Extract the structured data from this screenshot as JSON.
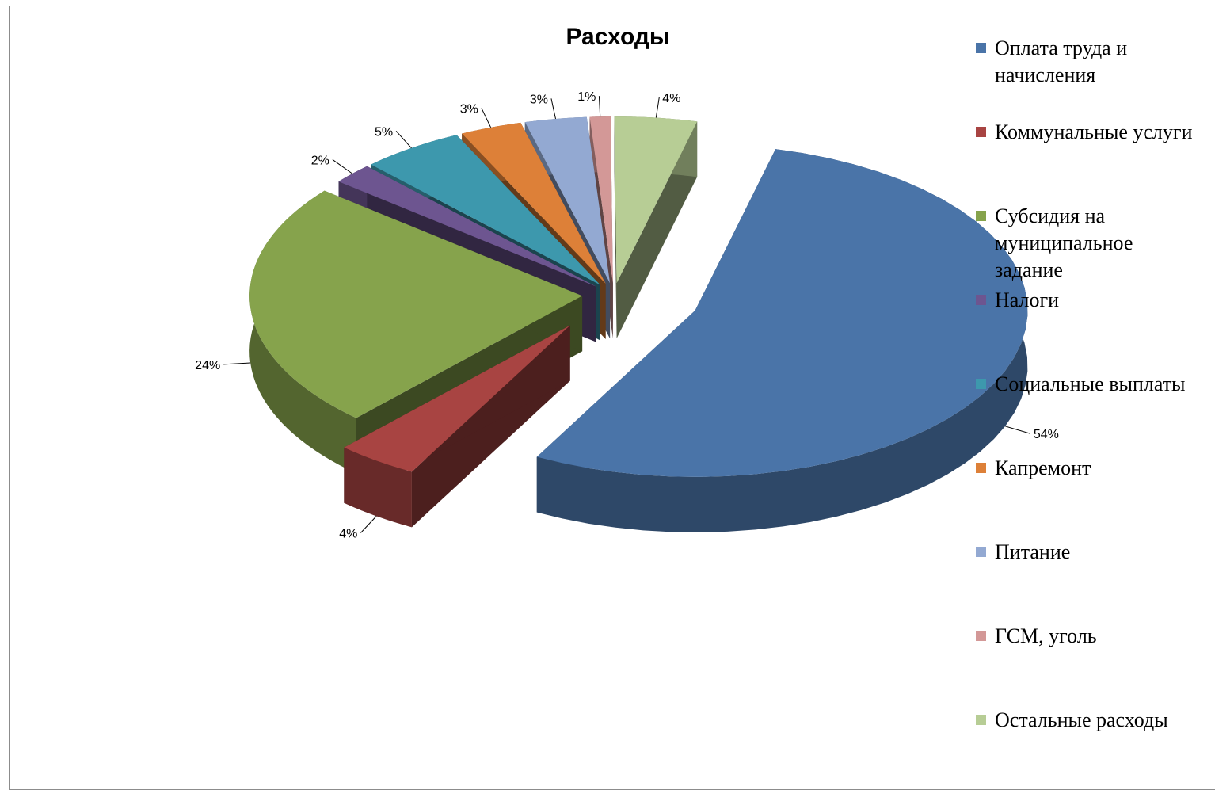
{
  "chart_data": {
    "type": "pie",
    "title": "Расходы",
    "style": "3d-exploded",
    "legend_position": "right",
    "slices": [
      {
        "label": "Оплата труда и\nначисления",
        "value": 54,
        "display": "54%",
        "color": "#4a74a8"
      },
      {
        "label": "Коммунальные услуги",
        "value": 4,
        "display": "4%",
        "color": "#a84442"
      },
      {
        "label": "Субсидия на\nмуниципальное\nзадание",
        "value": 24,
        "display": "24%",
        "color": "#86a34c"
      },
      {
        "label": "Налоги",
        "value": 2,
        "display": "2%",
        "color": "#6d5590"
      },
      {
        "label": "Социальные выплаты",
        "value": 5,
        "display": "5%",
        "color": "#3d98ad"
      },
      {
        "label": "Капремонт",
        "value": 3,
        "display": "3%",
        "color": "#dd8038"
      },
      {
        "label": "Питание",
        "value": 3,
        "display": "3%",
        "color": "#93a9d2"
      },
      {
        "label": "ГСМ, уголь",
        "value": 1,
        "display": "1%",
        "color": "#d39897"
      },
      {
        "label": "Остальные расходы",
        "value": 4,
        "display": "4%",
        "color": "#b7cd95"
      }
    ]
  }
}
